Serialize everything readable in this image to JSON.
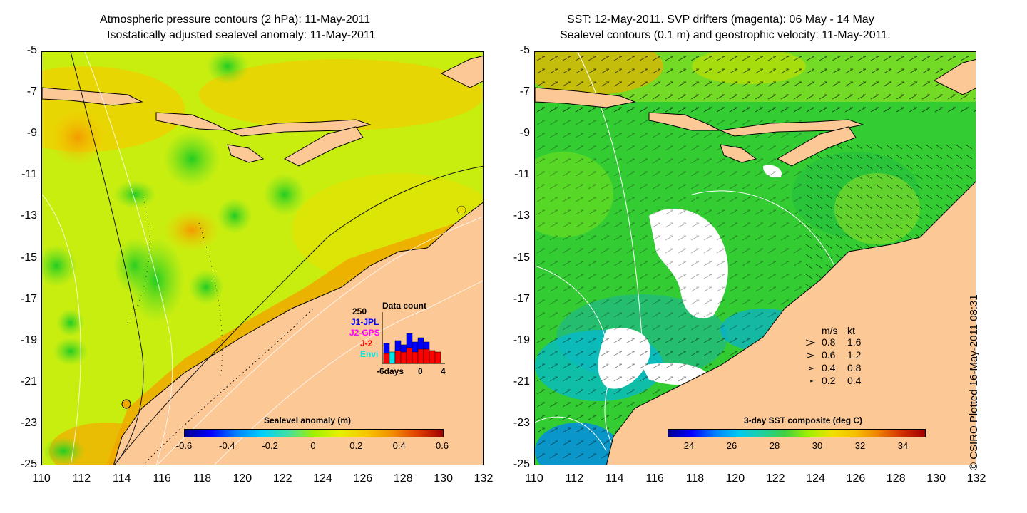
{
  "left_panel": {
    "title_line1": "Atmospheric pressure contours (2 hPa): 11-May-2011",
    "title_line2": "Isostatically adjusted sealevel anomaly: 11-May-2011",
    "colorbar": {
      "title": "Sealevel anomaly (m)",
      "ticks": [
        "-0.6",
        "-0.4",
        "-0.2",
        "0",
        "0.2",
        "0.4",
        "0.6"
      ],
      "range": [
        -0.6,
        0.6
      ]
    },
    "data_count_legend": {
      "title": "Data count",
      "max_label": "250",
      "missions": [
        {
          "label": "J1-JPL",
          "color": "#0000ff"
        },
        {
          "label": "J2-GPS",
          "color": "#ff00ff"
        },
        {
          "label": "J-2",
          "color": "#ff0000"
        },
        {
          "label": "Envi",
          "color": "#00e5e5"
        }
      ],
      "x_axis": {
        "label": "-6days",
        "ticks": [
          "0",
          "4"
        ]
      }
    }
  },
  "right_panel": {
    "title_line1": "SST: 12-May-2011. SVP drifters (magenta): 06 May - 14 May",
    "title_line2": "Sealevel contours (0.1 m) and geostrophic velocity: 11-May-2011.",
    "colorbar": {
      "title": "3-day SST composite (deg C)",
      "ticks": [
        "24",
        "26",
        "28",
        "30",
        "32",
        "34"
      ],
      "range": [
        23,
        35
      ]
    },
    "velocity_legend": {
      "headers": [
        "m/s",
        "kt"
      ],
      "rows": [
        {
          "ms": "0.8",
          "kt": "1.6"
        },
        {
          "ms": "0.6",
          "kt": "1.2"
        },
        {
          "ms": "0.4",
          "kt": "0.8"
        },
        {
          "ms": "0.2",
          "kt": "0.4"
        }
      ]
    }
  },
  "axes": {
    "lat_labels": [
      "-5",
      "-7",
      "-9",
      "-11",
      "-13",
      "-15",
      "-17",
      "-19",
      "-21",
      "-23",
      "-25"
    ],
    "lon_labels": [
      "110",
      "112",
      "114",
      "116",
      "118",
      "120",
      "122",
      "124",
      "126",
      "128",
      "130",
      "132"
    ],
    "lat_range": [
      -25,
      -5
    ],
    "lon_range": [
      110,
      132
    ]
  },
  "credit": "© CSIRO Plotted 16-May-2011 08:31",
  "colors": {
    "land": "#fcc896",
    "sea_mid": "#b8f000",
    "sea_high": "#f5c800",
    "sst_mid": "#33cc33",
    "sst_low": "#00aaee",
    "cloud": "#ffffff"
  }
}
